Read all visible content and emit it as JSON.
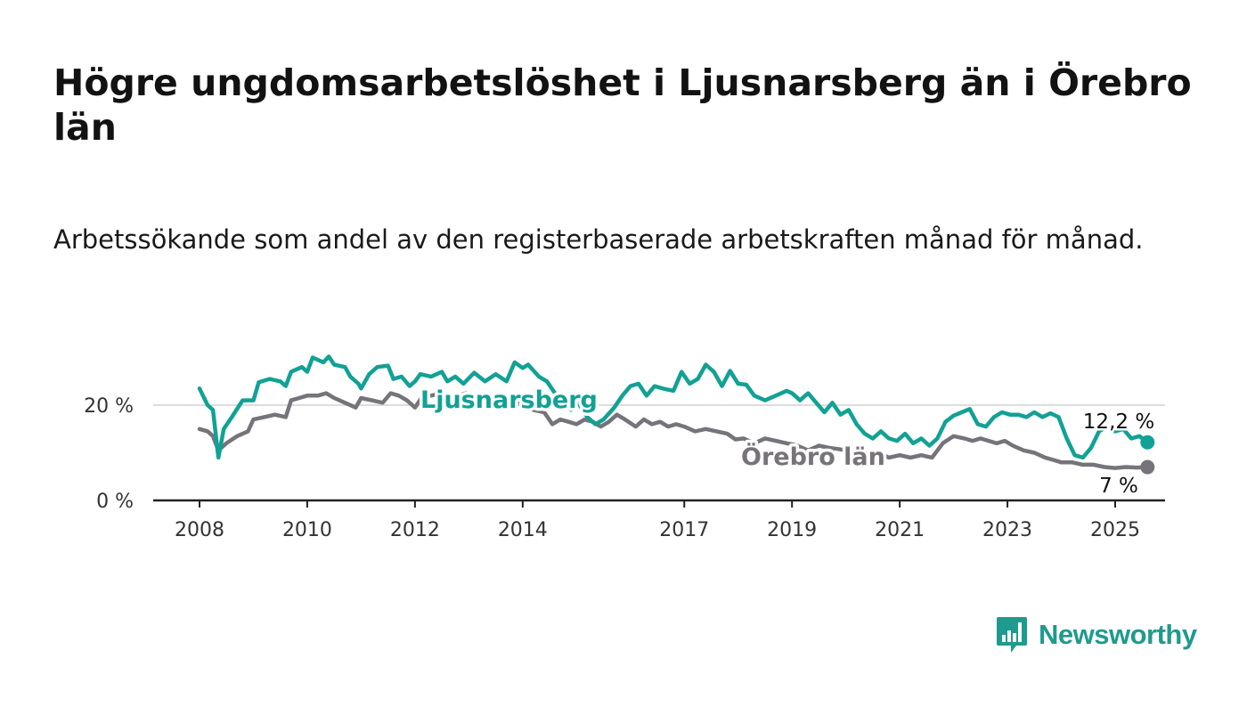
{
  "title": "Högre ungdomsarbetslöshet i Ljusnarsberg än i Örebro län",
  "subtitle": "Arbetssökande som andel av den registerbaserade arbetskraften månad för månad.",
  "brand": {
    "name": "Newsworthy",
    "color": "#1f9a8f"
  },
  "colors": {
    "ljusnarsberg": "#12a195",
    "orebro": "#77737a",
    "grid": "#dddddd",
    "axis": "#222222"
  },
  "chart_data": {
    "type": "line",
    "title": "Högre ungdomsarbetslöshet i Ljusnarsberg än i Örebro län",
    "xlabel": "",
    "ylabel": "",
    "xlim": [
      2007.9,
      2025.9
    ],
    "ylim": [
      0,
      30
    ],
    "grid": "horizontal",
    "y_ticks": [
      {
        "value": 0,
        "label": "0 %"
      },
      {
        "value": 20,
        "label": "20 %"
      }
    ],
    "x_ticks": [
      {
        "value": 2008,
        "label": "2008"
      },
      {
        "value": 2010,
        "label": "2010"
      },
      {
        "value": 2012,
        "label": "2012"
      },
      {
        "value": 2014,
        "label": "2014"
      },
      {
        "value": 2017,
        "label": "2017"
      },
      {
        "value": 2019,
        "label": "2019"
      },
      {
        "value": 2021,
        "label": "2021"
      },
      {
        "value": 2023,
        "label": "2023"
      },
      {
        "value": 2025,
        "label": "2025"
      }
    ],
    "series": [
      {
        "name": "Ljusnarsberg",
        "color": "#12a195",
        "end_label": "12,2 %",
        "points": [
          [
            2008.0,
            23.5
          ],
          [
            2008.15,
            20.0
          ],
          [
            2008.25,
            19.0
          ],
          [
            2008.35,
            9.0
          ],
          [
            2008.45,
            15.0
          ],
          [
            2008.6,
            17.5
          ],
          [
            2008.8,
            21.0
          ],
          [
            2009.0,
            21.0
          ],
          [
            2009.1,
            24.8
          ],
          [
            2009.3,
            25.5
          ],
          [
            2009.5,
            25.0
          ],
          [
            2009.6,
            24.0
          ],
          [
            2009.7,
            27.0
          ],
          [
            2009.9,
            28.0
          ],
          [
            2010.0,
            27.0
          ],
          [
            2010.1,
            30.0
          ],
          [
            2010.3,
            29.0
          ],
          [
            2010.4,
            30.2
          ],
          [
            2010.5,
            28.5
          ],
          [
            2010.7,
            28.0
          ],
          [
            2010.8,
            26.0
          ],
          [
            2010.95,
            24.5
          ],
          [
            2011.0,
            23.5
          ],
          [
            2011.15,
            26.5
          ],
          [
            2011.3,
            28.0
          ],
          [
            2011.5,
            28.3
          ],
          [
            2011.6,
            25.5
          ],
          [
            2011.75,
            26.0
          ],
          [
            2011.9,
            24.0
          ],
          [
            2012.0,
            25.0
          ],
          [
            2012.1,
            26.5
          ],
          [
            2012.3,
            26.0
          ],
          [
            2012.5,
            27.0
          ],
          [
            2012.6,
            25.0
          ],
          [
            2012.75,
            26.0
          ],
          [
            2012.9,
            24.5
          ],
          [
            2013.1,
            26.8
          ],
          [
            2013.3,
            25.0
          ],
          [
            2013.5,
            26.5
          ],
          [
            2013.7,
            25.0
          ],
          [
            2013.85,
            29.0
          ],
          [
            2014.0,
            27.8
          ],
          [
            2014.1,
            28.5
          ],
          [
            2014.3,
            26.0
          ],
          [
            2014.45,
            25.0
          ],
          [
            2014.6,
            22.5
          ],
          [
            2014.75,
            20.5
          ],
          [
            2014.9,
            19.0
          ],
          [
            2015.0,
            21.0
          ],
          [
            2015.2,
            17.5
          ],
          [
            2015.35,
            16.0
          ],
          [
            2015.5,
            17.0
          ],
          [
            2015.7,
            19.5
          ],
          [
            2015.85,
            22.0
          ],
          [
            2016.0,
            24.0
          ],
          [
            2016.15,
            24.5
          ],
          [
            2016.3,
            22.0
          ],
          [
            2016.45,
            24.0
          ],
          [
            2016.6,
            23.5
          ],
          [
            2016.8,
            23.0
          ],
          [
            2016.95,
            27.0
          ],
          [
            2017.1,
            24.5
          ],
          [
            2017.25,
            25.5
          ],
          [
            2017.4,
            28.5
          ],
          [
            2017.55,
            27.0
          ],
          [
            2017.7,
            24.0
          ],
          [
            2017.85,
            27.2
          ],
          [
            2018.0,
            24.5
          ],
          [
            2018.15,
            24.3
          ],
          [
            2018.3,
            22.0
          ],
          [
            2018.5,
            21.0
          ],
          [
            2018.7,
            22.0
          ],
          [
            2018.9,
            23.0
          ],
          [
            2019.0,
            22.5
          ],
          [
            2019.15,
            21.0
          ],
          [
            2019.3,
            22.5
          ],
          [
            2019.45,
            20.5
          ],
          [
            2019.6,
            18.5
          ],
          [
            2019.75,
            20.5
          ],
          [
            2019.9,
            18.0
          ],
          [
            2020.05,
            19.0
          ],
          [
            2020.2,
            16.0
          ],
          [
            2020.35,
            14.0
          ],
          [
            2020.5,
            13.0
          ],
          [
            2020.65,
            14.5
          ],
          [
            2020.8,
            13.0
          ],
          [
            2020.95,
            12.5
          ],
          [
            2021.1,
            14.0
          ],
          [
            2021.25,
            12.0
          ],
          [
            2021.4,
            13.0
          ],
          [
            2021.55,
            11.5
          ],
          [
            2021.7,
            13.0
          ],
          [
            2021.85,
            16.5
          ],
          [
            2022.0,
            17.8
          ],
          [
            2022.15,
            18.5
          ],
          [
            2022.3,
            19.2
          ],
          [
            2022.45,
            16.0
          ],
          [
            2022.6,
            15.5
          ],
          [
            2022.75,
            17.5
          ],
          [
            2022.9,
            18.5
          ],
          [
            2023.05,
            18.0
          ],
          [
            2023.2,
            18.0
          ],
          [
            2023.35,
            17.5
          ],
          [
            2023.5,
            18.5
          ],
          [
            2023.65,
            17.5
          ],
          [
            2023.8,
            18.3
          ],
          [
            2023.95,
            17.5
          ],
          [
            2024.1,
            13.0
          ],
          [
            2024.25,
            9.5
          ],
          [
            2024.4,
            9.0
          ],
          [
            2024.55,
            11.0
          ],
          [
            2024.7,
            14.5
          ],
          [
            2024.85,
            15.5
          ],
          [
            2025.0,
            14.5
          ],
          [
            2025.15,
            15.0
          ],
          [
            2025.3,
            13.0
          ],
          [
            2025.45,
            13.5
          ],
          [
            2025.6,
            12.2
          ]
        ]
      },
      {
        "name": "Örebro län",
        "color": "#77737a",
        "end_label": "7 %",
        "points": [
          [
            2008.0,
            15.0
          ],
          [
            2008.15,
            14.5
          ],
          [
            2008.25,
            13.5
          ],
          [
            2008.35,
            10.5
          ],
          [
            2008.5,
            12.0
          ],
          [
            2008.7,
            13.5
          ],
          [
            2008.9,
            14.5
          ],
          [
            2009.0,
            17.0
          ],
          [
            2009.2,
            17.5
          ],
          [
            2009.4,
            18.0
          ],
          [
            2009.6,
            17.5
          ],
          [
            2009.7,
            21.0
          ],
          [
            2009.85,
            21.5
          ],
          [
            2010.0,
            22.0
          ],
          [
            2010.2,
            22.0
          ],
          [
            2010.35,
            22.5
          ],
          [
            2010.5,
            21.5
          ],
          [
            2010.7,
            20.5
          ],
          [
            2010.9,
            19.5
          ],
          [
            2011.0,
            21.5
          ],
          [
            2011.2,
            21.0
          ],
          [
            2011.4,
            20.5
          ],
          [
            2011.55,
            22.5
          ],
          [
            2011.7,
            22.0
          ],
          [
            2011.85,
            21.0
          ],
          [
            2012.0,
            19.5
          ],
          [
            2012.15,
            22.0
          ],
          [
            2012.3,
            22.0
          ],
          [
            2012.5,
            22.5
          ],
          [
            2012.65,
            21.5
          ],
          [
            2012.8,
            22.0
          ],
          [
            2012.95,
            22.5
          ],
          [
            2013.1,
            21.5
          ],
          [
            2013.3,
            20.0
          ],
          [
            2013.5,
            20.5
          ],
          [
            2013.7,
            19.5
          ],
          [
            2013.85,
            20.5
          ],
          [
            2014.0,
            20.0
          ],
          [
            2014.2,
            19.0
          ],
          [
            2014.4,
            18.5
          ],
          [
            2014.55,
            16.0
          ],
          [
            2014.7,
            17.0
          ],
          [
            2014.85,
            16.5
          ],
          [
            2015.0,
            16.0
          ],
          [
            2015.15,
            17.0
          ],
          [
            2015.3,
            16.5
          ],
          [
            2015.45,
            15.5
          ],
          [
            2015.6,
            16.5
          ],
          [
            2015.75,
            18.0
          ],
          [
            2015.9,
            17.0
          ],
          [
            2016.1,
            15.5
          ],
          [
            2016.25,
            17.0
          ],
          [
            2016.4,
            16.0
          ],
          [
            2016.55,
            16.5
          ],
          [
            2016.7,
            15.5
          ],
          [
            2016.85,
            16.0
          ],
          [
            2017.0,
            15.5
          ],
          [
            2017.2,
            14.5
          ],
          [
            2017.4,
            15.0
          ],
          [
            2017.6,
            14.5
          ],
          [
            2017.8,
            14.0
          ],
          [
            2017.95,
            12.8
          ],
          [
            2018.1,
            13.0
          ],
          [
            2018.3,
            12.0
          ],
          [
            2018.5,
            13.0
          ],
          [
            2018.7,
            12.5
          ],
          [
            2018.9,
            12.0
          ],
          [
            2019.1,
            11.5
          ],
          [
            2019.3,
            10.5
          ],
          [
            2019.5,
            11.5
          ],
          [
            2019.7,
            11.0
          ],
          [
            2019.85,
            10.8
          ],
          [
            2020.0,
            10.5
          ],
          [
            2020.2,
            10.0
          ],
          [
            2020.4,
            9.5
          ],
          [
            2020.6,
            10.0
          ],
          [
            2020.8,
            9.0
          ],
          [
            2021.0,
            9.5
          ],
          [
            2021.2,
            9.0
          ],
          [
            2021.4,
            9.5
          ],
          [
            2021.6,
            9.0
          ],
          [
            2021.8,
            12.0
          ],
          [
            2022.0,
            13.5
          ],
          [
            2022.2,
            13.0
          ],
          [
            2022.35,
            12.5
          ],
          [
            2022.5,
            13.0
          ],
          [
            2022.65,
            12.5
          ],
          [
            2022.8,
            12.0
          ],
          [
            2022.95,
            12.5
          ],
          [
            2023.1,
            11.5
          ],
          [
            2023.3,
            10.5
          ],
          [
            2023.5,
            10.0
          ],
          [
            2023.7,
            9.0
          ],
          [
            2023.85,
            8.5
          ],
          [
            2024.0,
            8.0
          ],
          [
            2024.2,
            8.0
          ],
          [
            2024.4,
            7.5
          ],
          [
            2024.6,
            7.5
          ],
          [
            2024.8,
            7.0
          ],
          [
            2025.0,
            6.8
          ],
          [
            2025.2,
            7.0
          ],
          [
            2025.4,
            6.9
          ],
          [
            2025.6,
            7.0
          ]
        ]
      }
    ]
  }
}
